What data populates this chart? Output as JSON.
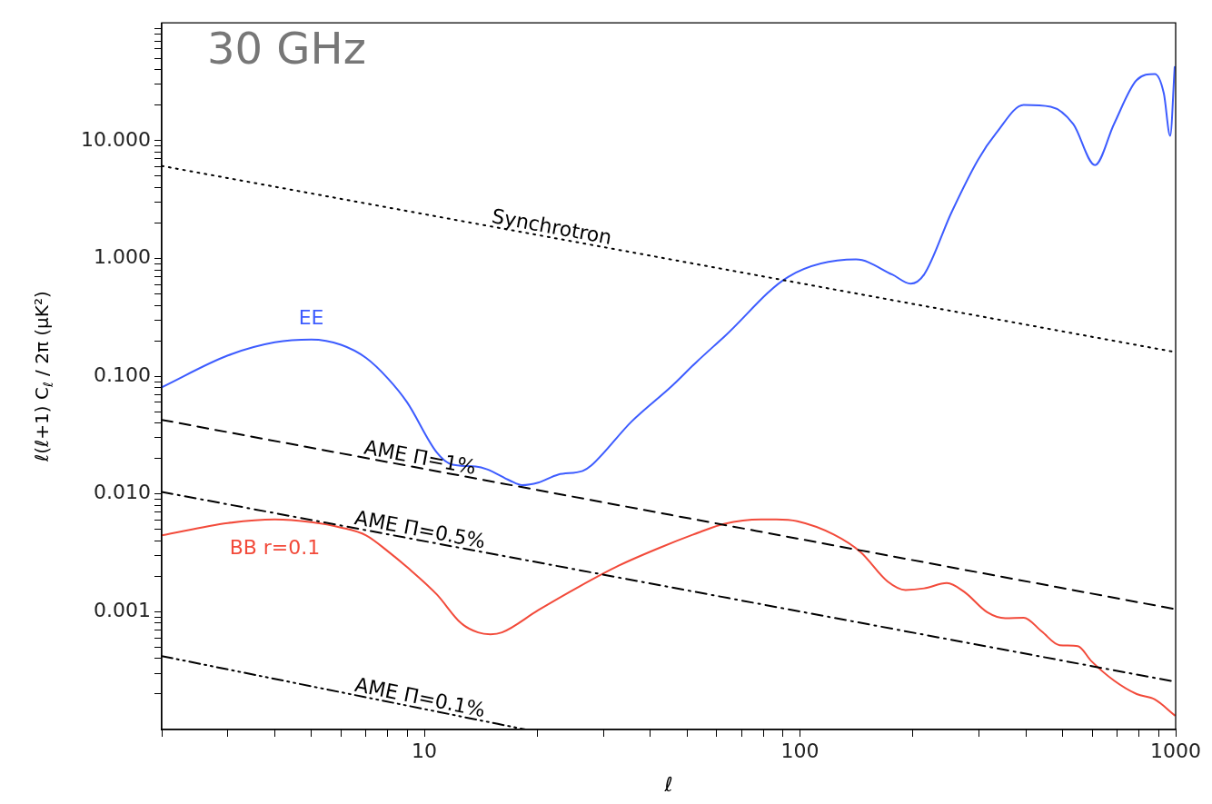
{
  "chart_data": {
    "type": "line",
    "title": "30 GHz",
    "xlabel": "ℓ",
    "ylabel": "ℓ(ℓ+1) C$_{ℓ}$ / 2π (μK²)",
    "log": "xy",
    "legend": false,
    "xlim": [
      2,
      1000
    ],
    "ylim": [
      0.0001,
      100
    ],
    "xticks": [
      {
        "value": 2,
        "label": null
      },
      {
        "value": 3,
        "label": null
      },
      {
        "value": 4,
        "label": null
      },
      {
        "value": 5,
        "label": null
      },
      {
        "value": 6,
        "label": null
      },
      {
        "value": 7,
        "label": null
      },
      {
        "value": 8,
        "label": null
      },
      {
        "value": 9,
        "label": null
      },
      10,
      {
        "value": 20,
        "label": null
      },
      {
        "value": 30,
        "label": null
      },
      {
        "value": 40,
        "label": null
      },
      {
        "value": 50,
        "label": null
      },
      {
        "value": 60,
        "label": null
      },
      {
        "value": 70,
        "label": null
      },
      {
        "value": 80,
        "label": null
      },
      {
        "value": 90,
        "label": null
      },
      100,
      {
        "value": 200,
        "label": null
      },
      {
        "value": 300,
        "label": null
      },
      {
        "value": 400,
        "label": null
      },
      {
        "value": 500,
        "label": null
      },
      {
        "value": 600,
        "label": null
      },
      {
        "value": 700,
        "label": null
      },
      {
        "value": 800,
        "label": null
      },
      {
        "value": 900,
        "label": null
      },
      1000
    ],
    "yticks": [
      {
        "value": 0.0002,
        "label": null
      },
      {
        "value": 0.0003,
        "label": null
      },
      {
        "value": 0.0004,
        "label": null
      },
      {
        "value": 0.0005,
        "label": null
      },
      {
        "value": 0.0006,
        "label": null
      },
      {
        "value": 0.0007,
        "label": null
      },
      {
        "value": 0.0008,
        "label": null
      },
      {
        "value": 0.0009,
        "label": null
      },
      {
        "value": 0.001,
        "label": "0.001"
      },
      {
        "value": 0.002,
        "label": null
      },
      {
        "value": 0.003,
        "label": null
      },
      {
        "value": 0.004,
        "label": null
      },
      {
        "value": 0.005,
        "label": null
      },
      {
        "value": 0.006,
        "label": null
      },
      {
        "value": 0.007,
        "label": null
      },
      {
        "value": 0.008,
        "label": null
      },
      {
        "value": 0.009,
        "label": null
      },
      {
        "value": 0.01,
        "label": "0.010"
      },
      {
        "value": 0.02,
        "label": null
      },
      {
        "value": 0.03,
        "label": null
      },
      {
        "value": 0.04,
        "label": null
      },
      {
        "value": 0.05,
        "label": null
      },
      {
        "value": 0.06,
        "label": null
      },
      {
        "value": 0.07,
        "label": null
      },
      {
        "value": 0.08,
        "label": null
      },
      {
        "value": 0.09,
        "label": null
      },
      {
        "value": 0.1,
        "label": "0.100"
      },
      {
        "value": 0.2,
        "label": null
      },
      {
        "value": 0.3,
        "label": null
      },
      {
        "value": 0.4,
        "label": null
      },
      {
        "value": 0.5,
        "label": null
      },
      {
        "value": 0.6,
        "label": null
      },
      {
        "value": 0.7,
        "label": null
      },
      {
        "value": 0.8,
        "label": null
      },
      {
        "value": 0.9,
        "label": null
      },
      {
        "value": 1,
        "label": "1.000"
      },
      {
        "value": 2,
        "label": null
      },
      {
        "value": 3,
        "label": null
      },
      {
        "value": 4,
        "label": null
      },
      {
        "value": 5,
        "label": null
      },
      {
        "value": 6,
        "label": null
      },
      {
        "value": 7,
        "label": null
      },
      {
        "value": 8,
        "label": null
      },
      {
        "value": 9,
        "label": null
      },
      {
        "value": 10,
        "label": "10.000"
      },
      {
        "value": 20,
        "label": null
      },
      {
        "value": 30,
        "label": null
      },
      {
        "value": 40,
        "label": null
      },
      {
        "value": 50,
        "label": null
      },
      {
        "value": 60,
        "label": null
      },
      {
        "value": 70,
        "label": null
      },
      {
        "value": 80,
        "label": null
      },
      {
        "value": 90,
        "label": null
      }
    ],
    "series": [
      {
        "name": "Synchrotron",
        "color": "#000000",
        "line_style": "dotted",
        "x": [
          2,
          1000
        ],
        "values": [
          6.1,
          0.16
        ]
      },
      {
        "name": "EE",
        "color": "#3d5cff",
        "line_style": "solid",
        "x": [
          2,
          3,
          4,
          5,
          6,
          7,
          8,
          9,
          10.8,
          11.9,
          13.7,
          14.7,
          16.9,
          18.2,
          20.1,
          22.7,
          26.4,
          27.8,
          35.6,
          45.5,
          52.9,
          63.1,
          93,
          141,
          176,
          197,
          214,
          253,
          298,
          333,
          394,
          465,
          534,
          610,
          685,
          787,
          880,
          930,
          967,
          994
        ],
        "values": [
          0.0805,
          0.15,
          0.194,
          0.205,
          0.185,
          0.143,
          0.0957,
          0.06,
          0.0225,
          0.0177,
          0.0171,
          0.0162,
          0.013,
          0.0119,
          0.0125,
          0.0146,
          0.0157,
          0.0174,
          0.0411,
          0.082,
          0.131,
          0.219,
          0.697,
          0.98,
          0.73,
          0.61,
          0.73,
          2.45,
          6.9,
          11.6,
          20.1,
          19.4,
          13.8,
          6.2,
          13.8,
          32.6,
          36.8,
          25.2,
          11,
          42.2
        ]
      },
      {
        "name": "AME Π=1%",
        "color": "#000000",
        "line_style": "dashed",
        "x": [
          2,
          1000
        ],
        "values": [
          0.0426,
          0.00105
        ]
      },
      {
        "name": "AME Π=0.5%",
        "color": "#000000",
        "line_style": "dashdot",
        "x": [
          2,
          1000
        ],
        "values": [
          0.0104,
          0.000254
        ]
      },
      {
        "name": "BB r=0.1",
        "color": "#f24a3a",
        "line_style": "solid",
        "x": [
          2,
          3,
          4,
          5,
          6,
          7,
          8,
          9,
          10.8,
          12.5,
          13.9,
          15,
          16.1,
          20.1,
          25.8,
          33,
          42.3,
          54.3,
          62.7,
          78.7,
          86.5,
          98.4,
          123,
          145,
          171,
          191,
          214,
          246,
          274,
          315,
          352,
          394,
          440,
          491,
          549,
          597,
          686,
          788,
          880,
          994
        ],
        "values": [
          0.00445,
          0.00566,
          0.00607,
          0.00576,
          0.00519,
          0.00445,
          0.00326,
          0.00239,
          0.0014,
          0.000805,
          0.000667,
          0.000644,
          0.000667,
          0.00103,
          0.00163,
          0.00247,
          0.00349,
          0.00476,
          0.00556,
          0.00607,
          0.00607,
          0.00586,
          0.00452,
          0.00321,
          0.00181,
          0.00153,
          0.00158,
          0.00175,
          0.00147,
          0.00099,
          0.00088,
          0.00089,
          0.00068,
          0.00052,
          0.00051,
          0.00038,
          0.00026,
          0.0002,
          0.00018,
          0.000132
        ]
      },
      {
        "name": "AME Π=0.1%",
        "color": "#000000",
        "line_style": "dashdotdot",
        "x": [
          2,
          18.6
        ],
        "values": [
          0.00042,
          0.0001
        ]
      }
    ]
  }
}
